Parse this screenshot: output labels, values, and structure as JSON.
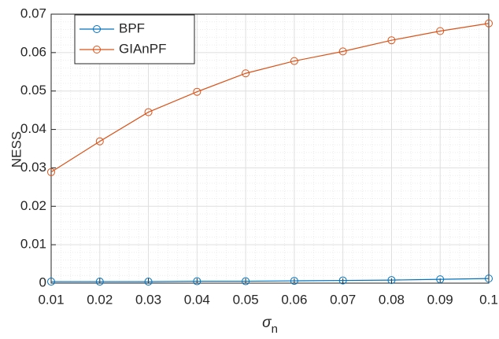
{
  "chart_data": {
    "type": "line",
    "xlabel": {
      "text": "σ",
      "subscript": "n"
    },
    "ylabel": "NESS",
    "x": [
      0.01,
      0.02,
      0.03,
      0.04,
      0.05,
      0.06,
      0.07,
      0.08,
      0.09,
      0.1
    ],
    "series": [
      {
        "name": "BPF",
        "color": "#0072BD",
        "values": [
          0.0004,
          0.0004,
          0.0004,
          0.0005,
          0.0005,
          0.0006,
          0.0007,
          0.0008,
          0.001,
          0.0012
        ]
      },
      {
        "name": "GIAnPF",
        "color": "#D95319",
        "values": [
          0.0289,
          0.0369,
          0.0445,
          0.0498,
          0.0546,
          0.0578,
          0.0603,
          0.0632,
          0.0656,
          0.0676
        ]
      }
    ],
    "xlim": [
      0.01,
      0.1
    ],
    "xticks": [
      0.01,
      0.02,
      0.03,
      0.04,
      0.05,
      0.06,
      0.07,
      0.08,
      0.09,
      0.1
    ],
    "ylim": [
      0,
      0.07
    ],
    "yticks": [
      0,
      0.01,
      0.02,
      0.03,
      0.04,
      0.05,
      0.06,
      0.07
    ],
    "grid": true,
    "minor_grid": true,
    "legend": "upper-left",
    "markers": "circle"
  }
}
